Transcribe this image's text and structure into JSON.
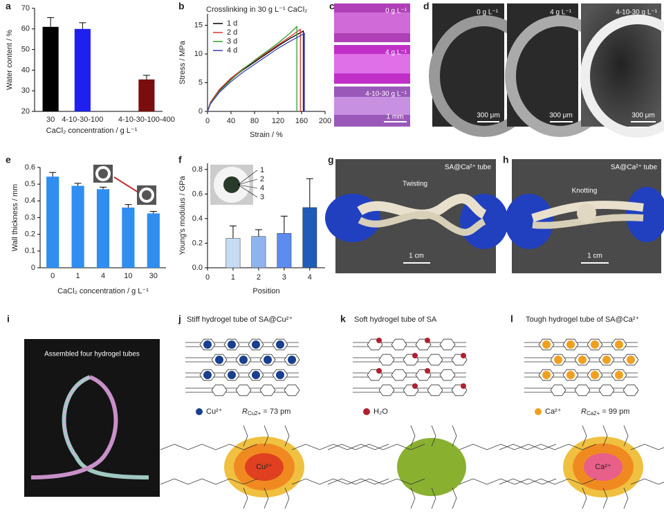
{
  "panel_labels": [
    "a",
    "b",
    "c",
    "d",
    "e",
    "f",
    "g",
    "h",
    "i",
    "j",
    "k",
    "l"
  ],
  "chart_data": [
    {
      "type": "bar",
      "categories": [
        "30",
        "4-10-30-100",
        null,
        "4-10-30-100-400"
      ],
      "values": [
        61,
        60,
        null,
        35.5
      ],
      "errors": [
        4.5,
        3,
        null,
        2
      ],
      "colors": [
        "#000000",
        "#1f1ff0",
        null,
        "#7a0d0d"
      ],
      "ylim": [
        20,
        70
      ],
      "yticks": [
        20,
        30,
        40,
        50,
        60,
        70
      ],
      "xlabel": "CaCl₂ concentration / g L⁻¹",
      "ylabel": "Water content / %"
    },
    {
      "type": "line",
      "title": "Crosslinking in 30 g L⁻¹ CaCl₂",
      "xlabel": "Strain / %",
      "ylabel": "Stress / MPa",
      "xlim": [
        0,
        200
      ],
      "xticks": [
        0,
        40,
        80,
        120,
        160,
        200
      ],
      "ylim": [
        0,
        17
      ],
      "yticks": [
        0,
        5,
        10,
        15
      ],
      "series": [
        {
          "name": "1 d",
          "color": "#000000",
          "x": [
            0,
            5,
            20,
            40,
            60,
            80,
            100,
            120,
            140,
            163,
            163
          ],
          "values": [
            0,
            1.5,
            3.6,
            5.6,
            7.2,
            8.6,
            10,
            11.4,
            12.7,
            14,
            0
          ]
        },
        {
          "name": "2 d",
          "color": "#e0302a",
          "x": [
            0,
            5,
            20,
            40,
            60,
            80,
            100,
            120,
            140,
            158,
            158
          ],
          "values": [
            0,
            1.6,
            3.8,
            5.8,
            7.4,
            8.8,
            10.2,
            11.6,
            13,
            14.3,
            0
          ]
        },
        {
          "name": "3 d",
          "color": "#2ca02c",
          "x": [
            0,
            5,
            20,
            40,
            60,
            80,
            100,
            120,
            140,
            152,
            152
          ],
          "values": [
            0,
            1.4,
            3.5,
            5.5,
            7.3,
            8.9,
            10.4,
            11.9,
            13.6,
            14.8,
            0
          ]
        },
        {
          "name": "4 d",
          "color": "#3b3bb5",
          "x": [
            0,
            5,
            20,
            40,
            60,
            80,
            100,
            120,
            140,
            165,
            165
          ],
          "values": [
            0,
            1.3,
            3.3,
            5.2,
            6.8,
            8.2,
            9.6,
            11,
            12.2,
            13.6,
            0
          ]
        }
      ]
    },
    {
      "type": "bar",
      "categories": [
        "0",
        "1",
        "4",
        "10",
        "30"
      ],
      "values": [
        0.545,
        0.49,
        0.47,
        0.36,
        0.325
      ],
      "errors": [
        0.025,
        0.015,
        0.012,
        0.018,
        0.012
      ],
      "color": "#2f8ef0",
      "ylim": [
        0,
        0.6
      ],
      "yticks": [
        0,
        0.1,
        0.2,
        0.3,
        0.4,
        0.5,
        0.6
      ],
      "xlabel": "CaCl₂ concentration / g L⁻¹",
      "ylabel": "Wall thickness / mm"
    },
    {
      "type": "bar",
      "x": [
        1,
        2,
        3,
        4
      ],
      "values": [
        0.24,
        0.255,
        0.28,
        0.49
      ],
      "errors": [
        0.1,
        0.055,
        0.14,
        0.235
      ],
      "colors": [
        "#c6dcf5",
        "#8fb3ee",
        "#5c8cf0",
        "#1f5bb8"
      ],
      "xlim": [
        0,
        4.6
      ],
      "xticks": [
        0,
        1,
        2,
        3,
        4
      ],
      "ylim": [
        0,
        0.85
      ],
      "yticks": [
        {
          "value": 0,
          "label": "0.0"
        },
        0.2,
        0.4,
        0.6,
        0.8
      ],
      "xlabel": "Position",
      "ylabel": "Young's modulus / GPa",
      "annotations": [
        "1",
        "2",
        "4",
        "3"
      ]
    }
  ],
  "photos": {
    "c": {
      "labels": [
        "0 g L⁻¹",
        "4 g L⁻¹",
        "4-10-30 g L⁻¹"
      ],
      "scale": "1 mm"
    },
    "d": {
      "labels": [
        "0 g L⁻¹",
        "4 g L⁻¹",
        "4-10-30 g L⁻¹"
      ],
      "scales": [
        "300 μm",
        "300 μm",
        "300 μm"
      ]
    },
    "g": {
      "tag": "SA@Ca²⁺ tube",
      "action": "Twisting",
      "scale": "1 cm"
    },
    "h": {
      "tag": "SA@Ca²⁺ tube",
      "action": "Knotting",
      "scale": "1 cm"
    },
    "i": {
      "caption": "Assembled four hydrogel tubes"
    }
  },
  "schemes": [
    {
      "title": "Stiff hydrogel tube of SA@Cu²⁺",
      "legend": "Cu²⁺",
      "radius_symbol": "R",
      "radius_ion": "Cu2+",
      "radius_value": " = 73 pm",
      "center": "Cu²⁺"
    },
    {
      "title": "Soft hydrogel tube of SA",
      "legend": "H₂O"
    },
    {
      "title": "Tough hydrogel tube of SA@Ca²⁺",
      "legend": "Ca²⁺",
      "radius_symbol": "R",
      "radius_ion": "Ca2+",
      "radius_value": " = 99 pm",
      "center": "Ca²⁺"
    }
  ]
}
